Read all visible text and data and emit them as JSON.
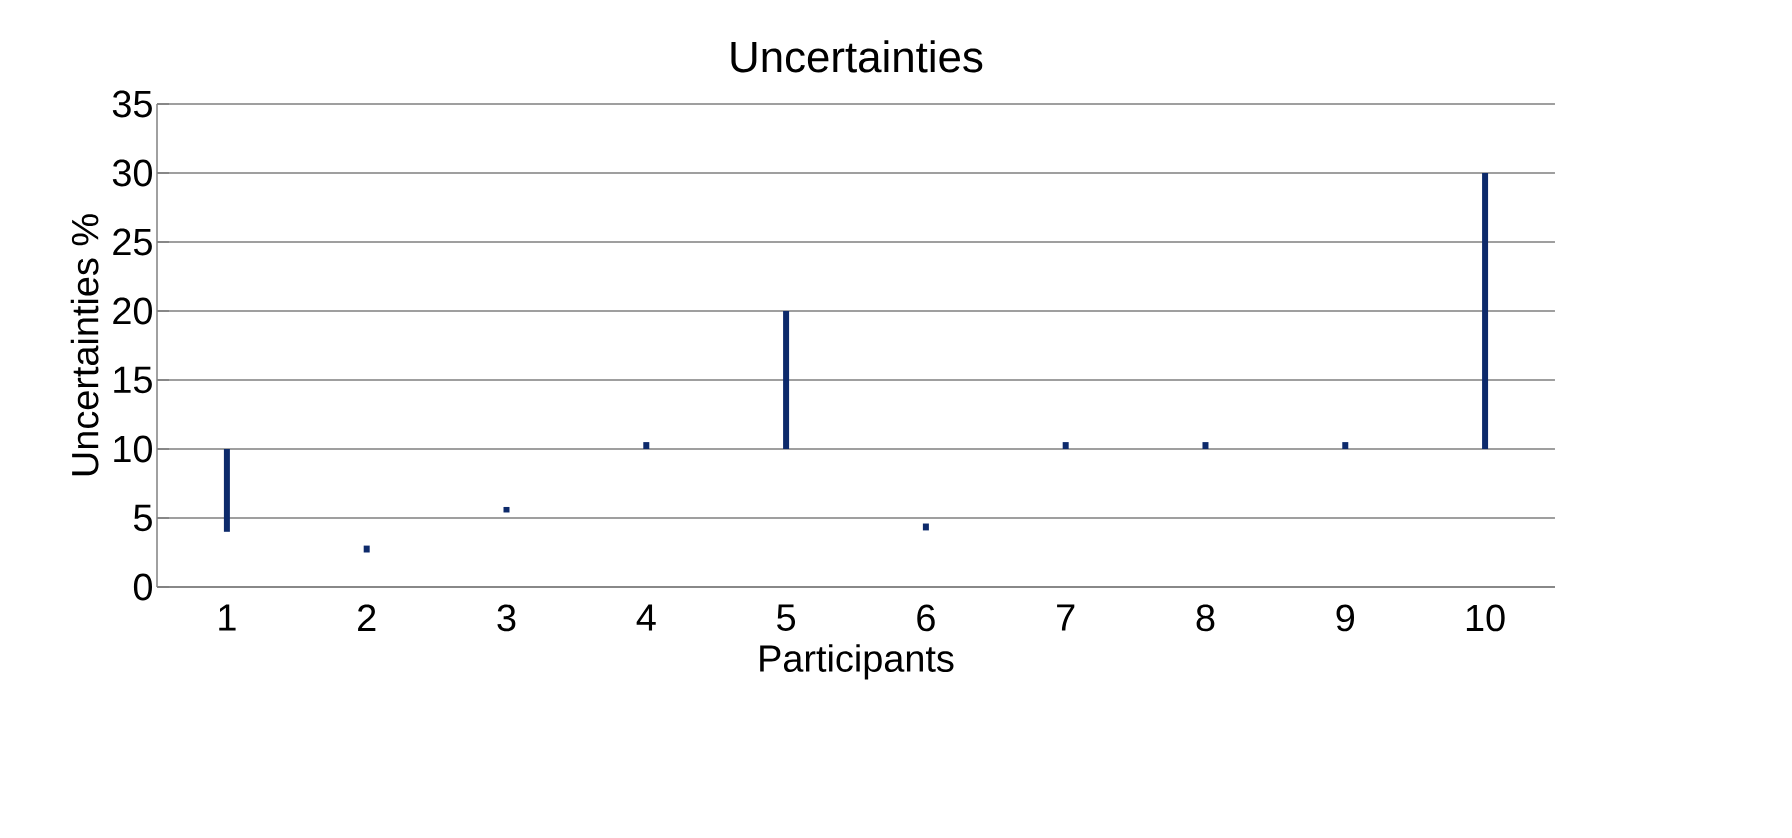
{
  "chart_data": {
    "type": "bar",
    "title": "Uncertainties",
    "xlabel": "Participants",
    "ylabel": "Uncertainties   %",
    "categories": [
      "1",
      "2",
      "3",
      "4",
      "5",
      "6",
      "7",
      "8",
      "9",
      "10"
    ],
    "base": [
      4,
      2.5,
      5.4,
      10,
      10,
      4.1,
      10,
      10,
      10,
      10
    ],
    "values": [
      6,
      0.5,
      0.4,
      0.5,
      10,
      0.5,
      0.5,
      0.5,
      0.5,
      20
    ],
    "color": "#0d2a6b",
    "ylim": [
      0,
      35
    ],
    "yticks": [
      0,
      5,
      10,
      15,
      20,
      25,
      30,
      35
    ],
    "grid": "y"
  }
}
